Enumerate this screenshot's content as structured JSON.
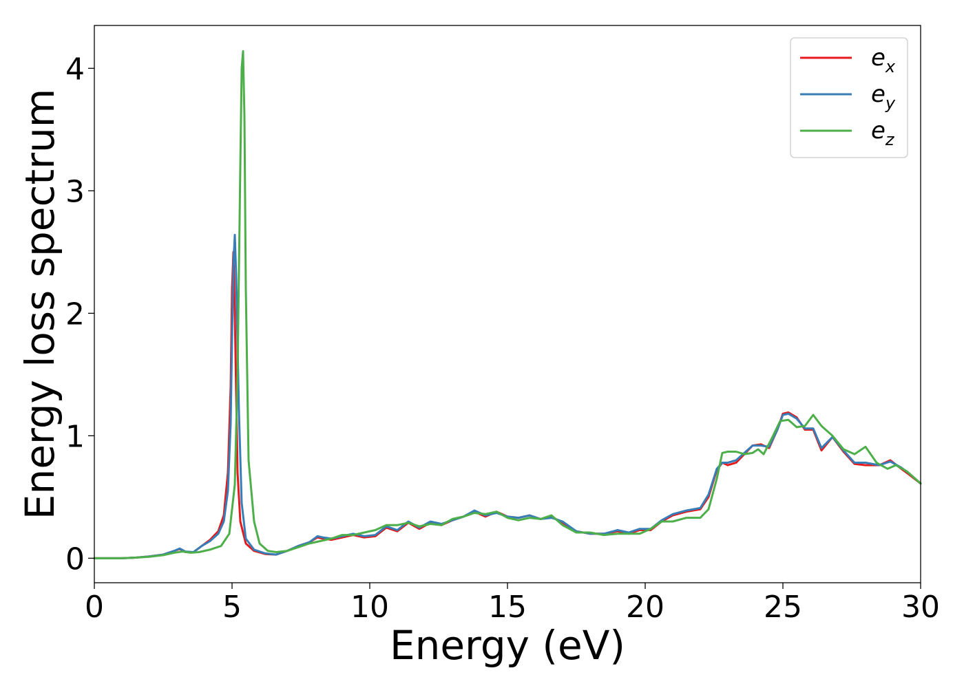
{
  "chart_data": {
    "type": "line",
    "title": "",
    "xlabel": "Energy (eV)",
    "ylabel": "Energy loss spectrum",
    "xlim": [
      0,
      30
    ],
    "ylim": [
      -0.2,
      4.35
    ],
    "xticks": [
      0,
      5,
      10,
      15,
      20,
      25,
      30
    ],
    "yticks": [
      0,
      1,
      2,
      3,
      4
    ],
    "grid": false,
    "legend_position": "top-right",
    "series": [
      {
        "name": "e_x",
        "label_base": "e",
        "label_sub": "x",
        "color": "#e41a1c",
        "x": [
          0,
          1,
          1.5,
          2,
          2.5,
          2.9,
          3.1,
          3.3,
          3.6,
          3.9,
          4.2,
          4.5,
          4.7,
          4.85,
          4.95,
          5.0,
          5.05,
          5.1,
          5.2,
          5.3,
          5.5,
          5.8,
          6.2,
          6.6,
          7.0,
          7.4,
          7.8,
          8.1,
          8.3,
          8.6,
          9.0,
          9.4,
          9.8,
          10.2,
          10.6,
          11.0,
          11.4,
          11.8,
          12.2,
          12.6,
          13.0,
          13.4,
          13.8,
          14.2,
          14.6,
          15.0,
          15.4,
          15.8,
          16.2,
          16.6,
          17.0,
          17.5,
          18.0,
          18.5,
          19.0,
          19.4,
          19.8,
          20.2,
          20.6,
          21.0,
          21.5,
          22.0,
          22.3,
          22.6,
          22.8,
          23.0,
          23.3,
          23.6,
          23.9,
          24.2,
          24.5,
          24.8,
          25.0,
          25.2,
          25.5,
          25.8,
          26.1,
          26.4,
          26.8,
          27.2,
          27.6,
          28.0,
          28.5,
          28.9,
          29.3,
          29.6,
          30.0
        ],
        "values": [
          0.0,
          0.0,
          0.005,
          0.015,
          0.03,
          0.06,
          0.075,
          0.05,
          0.05,
          0.1,
          0.15,
          0.22,
          0.35,
          0.7,
          1.4,
          2.2,
          2.5,
          2.0,
          0.7,
          0.3,
          0.12,
          0.06,
          0.035,
          0.03,
          0.06,
          0.1,
          0.13,
          0.17,
          0.16,
          0.15,
          0.17,
          0.19,
          0.17,
          0.18,
          0.25,
          0.22,
          0.29,
          0.24,
          0.29,
          0.27,
          0.31,
          0.34,
          0.38,
          0.34,
          0.38,
          0.34,
          0.33,
          0.35,
          0.32,
          0.34,
          0.29,
          0.22,
          0.2,
          0.2,
          0.22,
          0.2,
          0.23,
          0.23,
          0.3,
          0.35,
          0.38,
          0.4,
          0.5,
          0.72,
          0.78,
          0.76,
          0.78,
          0.85,
          0.92,
          0.93,
          0.9,
          1.05,
          1.18,
          1.19,
          1.15,
          1.05,
          1.05,
          0.88,
          0.99,
          0.87,
          0.77,
          0.76,
          0.76,
          0.8,
          0.73,
          0.68,
          0.61
        ]
      },
      {
        "name": "e_y",
        "label_base": "e",
        "label_sub": "y",
        "color": "#377eb8",
        "x": [
          0,
          1,
          1.5,
          2,
          2.5,
          2.9,
          3.1,
          3.3,
          3.6,
          3.9,
          4.2,
          4.5,
          4.7,
          4.85,
          4.95,
          5.0,
          5.05,
          5.1,
          5.15,
          5.25,
          5.35,
          5.5,
          5.8,
          6.2,
          6.6,
          7.0,
          7.4,
          7.8,
          8.1,
          8.3,
          8.6,
          9.0,
          9.4,
          9.8,
          10.2,
          10.6,
          11.0,
          11.4,
          11.8,
          12.2,
          12.6,
          13.0,
          13.4,
          13.8,
          14.2,
          14.6,
          15.0,
          15.4,
          15.8,
          16.2,
          16.6,
          17.0,
          17.5,
          18.0,
          18.5,
          19.0,
          19.4,
          19.8,
          20.2,
          20.6,
          21.0,
          21.5,
          22.0,
          22.3,
          22.6,
          22.8,
          23.0,
          23.3,
          23.6,
          23.9,
          24.2,
          24.5,
          24.8,
          25.0,
          25.2,
          25.5,
          25.8,
          26.1,
          26.4,
          26.8,
          27.2,
          27.6,
          28.0,
          28.5,
          28.9,
          29.3,
          29.6,
          30.0
        ],
        "values": [
          0.0,
          0.0,
          0.005,
          0.015,
          0.03,
          0.06,
          0.08,
          0.055,
          0.05,
          0.1,
          0.14,
          0.2,
          0.3,
          0.55,
          1.1,
          1.8,
          2.4,
          2.64,
          2.3,
          1.2,
          0.45,
          0.16,
          0.07,
          0.04,
          0.03,
          0.06,
          0.1,
          0.13,
          0.18,
          0.17,
          0.16,
          0.18,
          0.2,
          0.18,
          0.19,
          0.26,
          0.23,
          0.3,
          0.25,
          0.3,
          0.28,
          0.31,
          0.34,
          0.39,
          0.35,
          0.37,
          0.34,
          0.33,
          0.35,
          0.32,
          0.33,
          0.3,
          0.22,
          0.2,
          0.2,
          0.23,
          0.21,
          0.24,
          0.24,
          0.31,
          0.36,
          0.39,
          0.41,
          0.52,
          0.73,
          0.78,
          0.78,
          0.8,
          0.86,
          0.92,
          0.92,
          0.91,
          1.05,
          1.17,
          1.18,
          1.14,
          1.06,
          1.06,
          0.9,
          0.99,
          0.88,
          0.78,
          0.78,
          0.76,
          0.79,
          0.74,
          0.69,
          0.61
        ]
      },
      {
        "name": "e_z",
        "label_base": "e",
        "label_sub": "z",
        "color": "#4daf4a",
        "x": [
          0,
          1,
          1.5,
          2,
          2.5,
          2.9,
          3.2,
          3.5,
          3.8,
          4.2,
          4.6,
          4.9,
          5.1,
          5.2,
          5.3,
          5.35,
          5.4,
          5.45,
          5.5,
          5.6,
          5.8,
          6.0,
          6.3,
          6.6,
          7.0,
          7.4,
          7.8,
          8.2,
          8.6,
          9.0,
          9.4,
          9.8,
          10.2,
          10.6,
          11.0,
          11.4,
          11.8,
          12.2,
          12.6,
          13.0,
          13.4,
          13.8,
          14.2,
          14.6,
          15.0,
          15.4,
          15.8,
          16.2,
          16.6,
          17.0,
          17.5,
          18.0,
          18.5,
          19.0,
          19.4,
          19.8,
          20.2,
          20.6,
          21.0,
          21.5,
          22.0,
          22.3,
          22.6,
          22.8,
          23.0,
          23.3,
          23.6,
          23.9,
          24.1,
          24.3,
          24.6,
          24.9,
          25.2,
          25.5,
          25.8,
          26.1,
          26.4,
          26.8,
          27.2,
          27.6,
          28.0,
          28.4,
          28.8,
          29.1,
          29.5,
          30.0
        ],
        "values": [
          0.0,
          0.0,
          0.005,
          0.012,
          0.025,
          0.045,
          0.055,
          0.045,
          0.05,
          0.07,
          0.1,
          0.2,
          0.6,
          1.5,
          3.2,
          4.0,
          4.14,
          3.6,
          2.2,
          0.8,
          0.3,
          0.12,
          0.06,
          0.05,
          0.06,
          0.09,
          0.12,
          0.14,
          0.16,
          0.19,
          0.19,
          0.21,
          0.23,
          0.27,
          0.27,
          0.29,
          0.26,
          0.28,
          0.27,
          0.32,
          0.34,
          0.37,
          0.36,
          0.38,
          0.33,
          0.31,
          0.33,
          0.32,
          0.35,
          0.27,
          0.21,
          0.21,
          0.19,
          0.2,
          0.2,
          0.2,
          0.24,
          0.3,
          0.3,
          0.33,
          0.33,
          0.4,
          0.65,
          0.86,
          0.87,
          0.87,
          0.85,
          0.86,
          0.89,
          0.85,
          0.98,
          1.12,
          1.13,
          1.07,
          1.08,
          1.17,
          1.08,
          1.0,
          0.89,
          0.85,
          0.91,
          0.78,
          0.73,
          0.76,
          0.71,
          0.61
        ]
      }
    ]
  }
}
